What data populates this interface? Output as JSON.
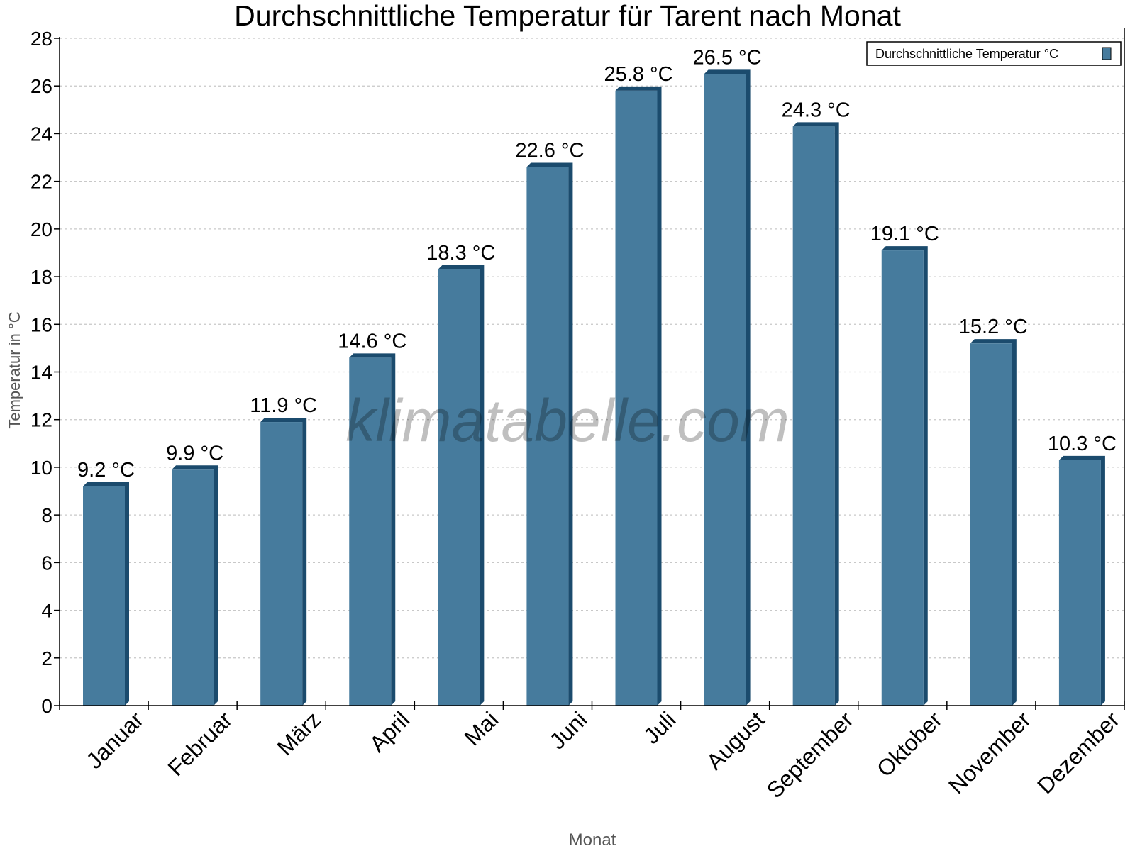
{
  "chart_data": {
    "type": "bar",
    "title": "Durchschnittliche Temperatur für Tarent nach Monat",
    "xlabel": "Monat",
    "ylabel": "Temperatur in °C",
    "categories": [
      "Januar",
      "Februar",
      "März",
      "April",
      "Mai",
      "Juni",
      "Juli",
      "August",
      "September",
      "Oktober",
      "November",
      "Dezember"
    ],
    "series": [
      {
        "name": "Durchschnittliche Temperatur °C",
        "values": [
          9.2,
          9.9,
          11.9,
          14.6,
          18.3,
          22.6,
          25.8,
          26.5,
          24.3,
          19.1,
          15.2,
          10.3
        ],
        "labels": [
          "9.2 °C",
          "9.9 °C",
          "11.9 °C",
          "14.6 °C",
          "18.3 °C",
          "22.6 °C",
          "25.8 °C",
          "26.5 °C",
          "24.3 °C",
          "19.1 °C",
          "15.2 °C",
          "10.3 °C"
        ]
      }
    ],
    "ylim": [
      0,
      28
    ],
    "yticks": [
      0,
      2,
      4,
      6,
      8,
      10,
      12,
      14,
      16,
      18,
      20,
      22,
      24,
      26,
      28
    ],
    "grid": true,
    "legend": "top-right",
    "colors": {
      "bar": "#467b9d",
      "bar_shade": "#1b4b6d",
      "grid": "#c8c8c8"
    },
    "watermark": "klimatabelle.com"
  }
}
